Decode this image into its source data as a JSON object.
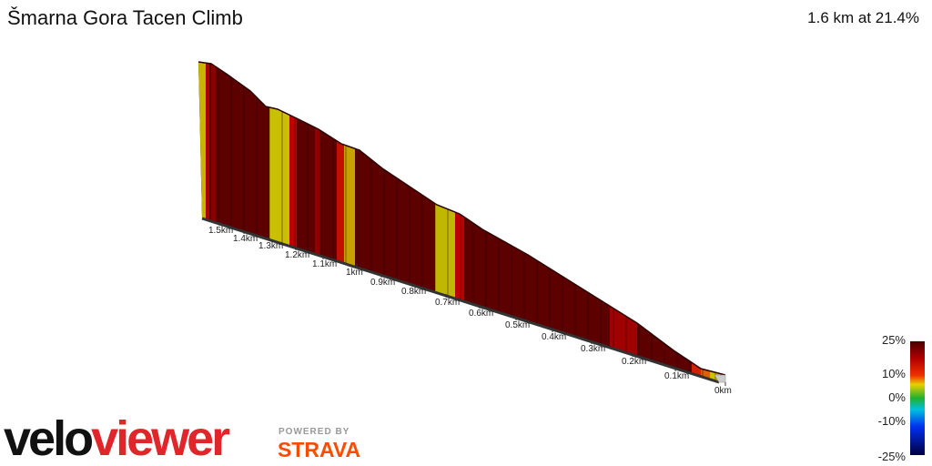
{
  "header": {
    "title": "Šmarna Gora Tacen Climb",
    "summary": "1.6 km at 21.4%"
  },
  "axis": {
    "labels": [
      "1.5km",
      "1.4km",
      "1.3km",
      "1.2km",
      "1.1km",
      "1km",
      "0.9km",
      "0.8km",
      "0.7km",
      "0.6km",
      "0.5km",
      "0.4km",
      "0.3km",
      "0.2km",
      "0.1km",
      "0km"
    ]
  },
  "legend": {
    "labels": [
      "25%",
      "10%",
      "0%",
      "-10%",
      "-25%"
    ]
  },
  "branding": {
    "velo": "velo",
    "viewer": "viewer",
    "powered": "POWERED BY",
    "strava": "STRAVA"
  }
}
